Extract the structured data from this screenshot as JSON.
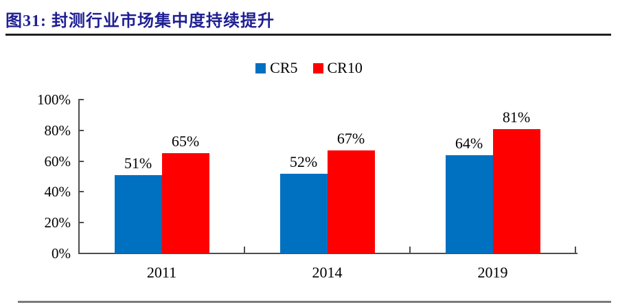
{
  "header": {
    "title": "图31:  封测行业市场集中度持续提升"
  },
  "chart_data": {
    "type": "bar",
    "title": "图31: 封测行业市场集中度持续提升",
    "categories": [
      "2011",
      "2014",
      "2019"
    ],
    "series": [
      {
        "name": "CR5",
        "color": "#0070C0",
        "values": [
          51,
          52,
          64
        ]
      },
      {
        "name": "CR10",
        "color": "#FF0000",
        "values": [
          65,
          67,
          81
        ]
      }
    ],
    "value_suffix": "%",
    "data_labels_shown": true,
    "xlabel": "",
    "ylabel": "",
    "ylim": [
      0,
      100
    ],
    "yticks": [
      0,
      20,
      40,
      60,
      80,
      100
    ],
    "ytick_labels": [
      "0%",
      "20%",
      "40%",
      "60%",
      "80%",
      "100%"
    ],
    "grid": false,
    "legend_position": "top-center"
  },
  "colors": {
    "cr5_blue": "#0070C0",
    "cr10_red": "#FF0000",
    "title_navy": "#1F1F93",
    "axis_gray": "#4D4D4D",
    "title_rule_dark": "#1F1F1F",
    "bottom_rule_gray": "#7A7A7A",
    "text_black": "#000000",
    "background": "#FFFFFF"
  }
}
